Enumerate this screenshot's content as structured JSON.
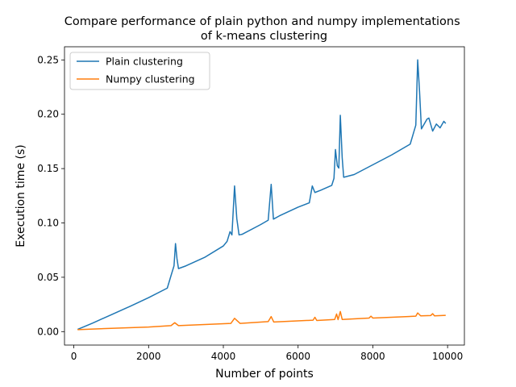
{
  "chart_data": {
    "type": "line",
    "title": "Compare performance of plain python and numpy implementations\nof k-means clustering",
    "xlabel": "Number of points",
    "ylabel": "Execution time (s)",
    "xlim": [
      -250,
      10450
    ],
    "ylim": [
      -0.0124,
      0.2621
    ],
    "xticks": [
      0,
      2000,
      4000,
      6000,
      8000,
      10000
    ],
    "xtick_labels": [
      "0",
      "2000",
      "4000",
      "6000",
      "8000",
      "10000"
    ],
    "yticks": [
      0.0,
      0.05,
      0.1,
      0.15,
      0.2,
      0.25
    ],
    "ytick_labels": [
      "0.00",
      "0.05",
      "0.10",
      "0.15",
      "0.20",
      "0.25"
    ],
    "grid": false,
    "legend_position": "top-left",
    "series": [
      {
        "name": "Plain clustering",
        "color": "#1f77b4",
        "points": [
          [
            100,
            0.002
          ],
          [
            500,
            0.0078
          ],
          [
            1000,
            0.0155
          ],
          [
            1500,
            0.0232
          ],
          [
            2000,
            0.0312
          ],
          [
            2500,
            0.04
          ],
          [
            2600,
            0.0515
          ],
          [
            2680,
            0.0605
          ],
          [
            2720,
            0.081
          ],
          [
            2760,
            0.067
          ],
          [
            2800,
            0.058
          ],
          [
            3000,
            0.0605
          ],
          [
            3500,
            0.0683
          ],
          [
            4000,
            0.0788
          ],
          [
            4100,
            0.083
          ],
          [
            4180,
            0.092
          ],
          [
            4230,
            0.089
          ],
          [
            4300,
            0.134
          ],
          [
            4360,
            0.104
          ],
          [
            4420,
            0.089
          ],
          [
            4500,
            0.0895
          ],
          [
            5000,
            0.0985
          ],
          [
            5200,
            0.1025
          ],
          [
            5280,
            0.1355
          ],
          [
            5340,
            0.1035
          ],
          [
            5500,
            0.1065
          ],
          [
            6000,
            0.1145
          ],
          [
            6300,
            0.1185
          ],
          [
            6380,
            0.134
          ],
          [
            6450,
            0.128
          ],
          [
            6600,
            0.13
          ],
          [
            6900,
            0.1345
          ],
          [
            6960,
            0.141
          ],
          [
            7000,
            0.1675
          ],
          [
            7050,
            0.1525
          ],
          [
            7090,
            0.1505
          ],
          [
            7130,
            0.199
          ],
          [
            7180,
            0.16
          ],
          [
            7220,
            0.142
          ],
          [
            7500,
            0.1445
          ],
          [
            8000,
            0.1535
          ],
          [
            8500,
            0.1625
          ],
          [
            9000,
            0.1725
          ],
          [
            9150,
            0.19
          ],
          [
            9200,
            0.25
          ],
          [
            9250,
            0.221
          ],
          [
            9300,
            0.1865
          ],
          [
            9450,
            0.1955
          ],
          [
            9500,
            0.1965
          ],
          [
            9600,
            0.1845
          ],
          [
            9700,
            0.191
          ],
          [
            9800,
            0.1875
          ],
          [
            9900,
            0.1935
          ],
          [
            9950,
            0.1915
          ]
        ]
      },
      {
        "name": "Numpy clustering",
        "color": "#ff7f0e",
        "points": [
          [
            100,
            0.0018
          ],
          [
            1000,
            0.003
          ],
          [
            2000,
            0.0042
          ],
          [
            2600,
            0.0055
          ],
          [
            2700,
            0.0082
          ],
          [
            2800,
            0.0055
          ],
          [
            3500,
            0.0065
          ],
          [
            4200,
            0.0075
          ],
          [
            4300,
            0.0122
          ],
          [
            4450,
            0.0075
          ],
          [
            5200,
            0.0092
          ],
          [
            5280,
            0.0138
          ],
          [
            5350,
            0.0088
          ],
          [
            6400,
            0.0105
          ],
          [
            6450,
            0.0132
          ],
          [
            6500,
            0.0102
          ],
          [
            6980,
            0.0112
          ],
          [
            7030,
            0.0162
          ],
          [
            7070,
            0.011
          ],
          [
            7130,
            0.0185
          ],
          [
            7180,
            0.0112
          ],
          [
            7900,
            0.0125
          ],
          [
            7950,
            0.0142
          ],
          [
            8000,
            0.0125
          ],
          [
            9150,
            0.0142
          ],
          [
            9200,
            0.0172
          ],
          [
            9280,
            0.0145
          ],
          [
            9550,
            0.0148
          ],
          [
            9600,
            0.0165
          ],
          [
            9650,
            0.0145
          ],
          [
            9950,
            0.015
          ]
        ]
      }
    ]
  }
}
